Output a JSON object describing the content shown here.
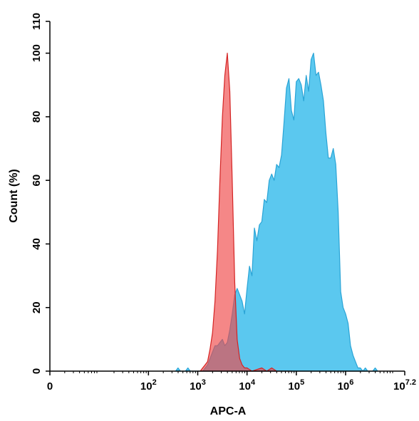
{
  "chart_data": {
    "type": "area",
    "title": "",
    "xlabel": "APC-A",
    "ylabel": "Count (%)",
    "x_scale": "log",
    "xlim": [
      1,
      15848932
    ],
    "ylim": [
      0,
      110
    ],
    "grid": false,
    "x_ticks": [
      {
        "value": 1,
        "base": "0",
        "exp": ""
      },
      {
        "value": 100,
        "base": "10",
        "exp": "2"
      },
      {
        "value": 1000,
        "base": "10",
        "exp": "3"
      },
      {
        "value": 10000,
        "base": "10",
        "exp": "4"
      },
      {
        "value": 100000,
        "base": "10",
        "exp": "5"
      },
      {
        "value": 1000000,
        "base": "10",
        "exp": "6"
      },
      {
        "value": 15848932,
        "base": "10",
        "exp": "7.2"
      }
    ],
    "y_ticks": [
      "0",
      "20",
      "40",
      "60",
      "80",
      "100",
      "110"
    ],
    "series": [
      {
        "color": "#5bc8ef",
        "stroke": "#2aa4d6",
        "points": [
          [
            355,
            0
          ],
          [
            398,
            1
          ],
          [
            447,
            0
          ],
          [
            562,
            0
          ],
          [
            631,
            1
          ],
          [
            708,
            0
          ],
          [
            1000,
            0
          ],
          [
            1259,
            0
          ],
          [
            1413,
            1
          ],
          [
            1585,
            2
          ],
          [
            1778,
            4
          ],
          [
            1995,
            6
          ],
          [
            2239,
            8
          ],
          [
            2512,
            8
          ],
          [
            2818,
            9
          ],
          [
            3162,
            10
          ],
          [
            3548,
            8
          ],
          [
            3981,
            9
          ],
          [
            4467,
            13
          ],
          [
            5012,
            18
          ],
          [
            5623,
            24
          ],
          [
            6310,
            26
          ],
          [
            7079,
            24
          ],
          [
            7943,
            22
          ],
          [
            8913,
            18
          ],
          [
            10000,
            26
          ],
          [
            11220,
            33
          ],
          [
            12589,
            30
          ],
          [
            14125,
            45
          ],
          [
            15849,
            41
          ],
          [
            17783,
            46
          ],
          [
            19953,
            47
          ],
          [
            22387,
            54
          ],
          [
            25119,
            53
          ],
          [
            28184,
            60
          ],
          [
            31623,
            62
          ],
          [
            35481,
            60
          ],
          [
            39811,
            65
          ],
          [
            44668,
            64
          ],
          [
            50119,
            68
          ],
          [
            56234,
            78
          ],
          [
            63096,
            89
          ],
          [
            70795,
            92
          ],
          [
            79433,
            82
          ],
          [
            89125,
            79
          ],
          [
            100000,
            91
          ],
          [
            112202,
            92
          ],
          [
            125893,
            90
          ],
          [
            141254,
            85
          ],
          [
            158489,
            93
          ],
          [
            177828,
            88
          ],
          [
            199526,
            98
          ],
          [
            223872,
            100
          ],
          [
            251189,
            93
          ],
          [
            281838,
            94
          ],
          [
            316228,
            90
          ],
          [
            354813,
            85
          ],
          [
            398107,
            75
          ],
          [
            446684,
            67
          ],
          [
            501187,
            67
          ],
          [
            562341,
            70
          ],
          [
            630957,
            65
          ],
          [
            707946,
            50
          ],
          [
            794328,
            25
          ],
          [
            891251,
            20
          ],
          [
            1000000,
            18
          ],
          [
            1122018,
            15
          ],
          [
            1258925,
            8
          ],
          [
            1412538,
            5
          ],
          [
            1584893,
            3
          ],
          [
            1778279,
            1
          ],
          [
            1995262,
            1
          ],
          [
            2238721,
            0
          ],
          [
            2511886,
            1
          ],
          [
            2818383,
            0
          ],
          [
            3162278,
            0
          ],
          [
            3548134,
            0
          ],
          [
            3981072,
            1
          ],
          [
            4466836,
            0
          ]
        ]
      },
      {
        "color": "rgba(240, 70, 70, 0.65)",
        "stroke": "#d42424",
        "points": [
          [
            1000,
            0
          ],
          [
            1122,
            0
          ],
          [
            1259,
            1
          ],
          [
            1413,
            2
          ],
          [
            1585,
            3
          ],
          [
            1778,
            7
          ],
          [
            1995,
            12
          ],
          [
            2239,
            22
          ],
          [
            2512,
            38
          ],
          [
            2818,
            60
          ],
          [
            3162,
            80
          ],
          [
            3548,
            93
          ],
          [
            3981,
            100
          ],
          [
            4467,
            88
          ],
          [
            5012,
            60
          ],
          [
            5623,
            28
          ],
          [
            6310,
            10
          ],
          [
            7079,
            4
          ],
          [
            7943,
            2
          ],
          [
            8913,
            1
          ],
          [
            10000,
            1
          ],
          [
            12589,
            0
          ],
          [
            19953,
            1
          ],
          [
            25119,
            0
          ],
          [
            31623,
            1
          ],
          [
            39811,
            0
          ],
          [
            79433,
            0
          ]
        ]
      }
    ]
  }
}
